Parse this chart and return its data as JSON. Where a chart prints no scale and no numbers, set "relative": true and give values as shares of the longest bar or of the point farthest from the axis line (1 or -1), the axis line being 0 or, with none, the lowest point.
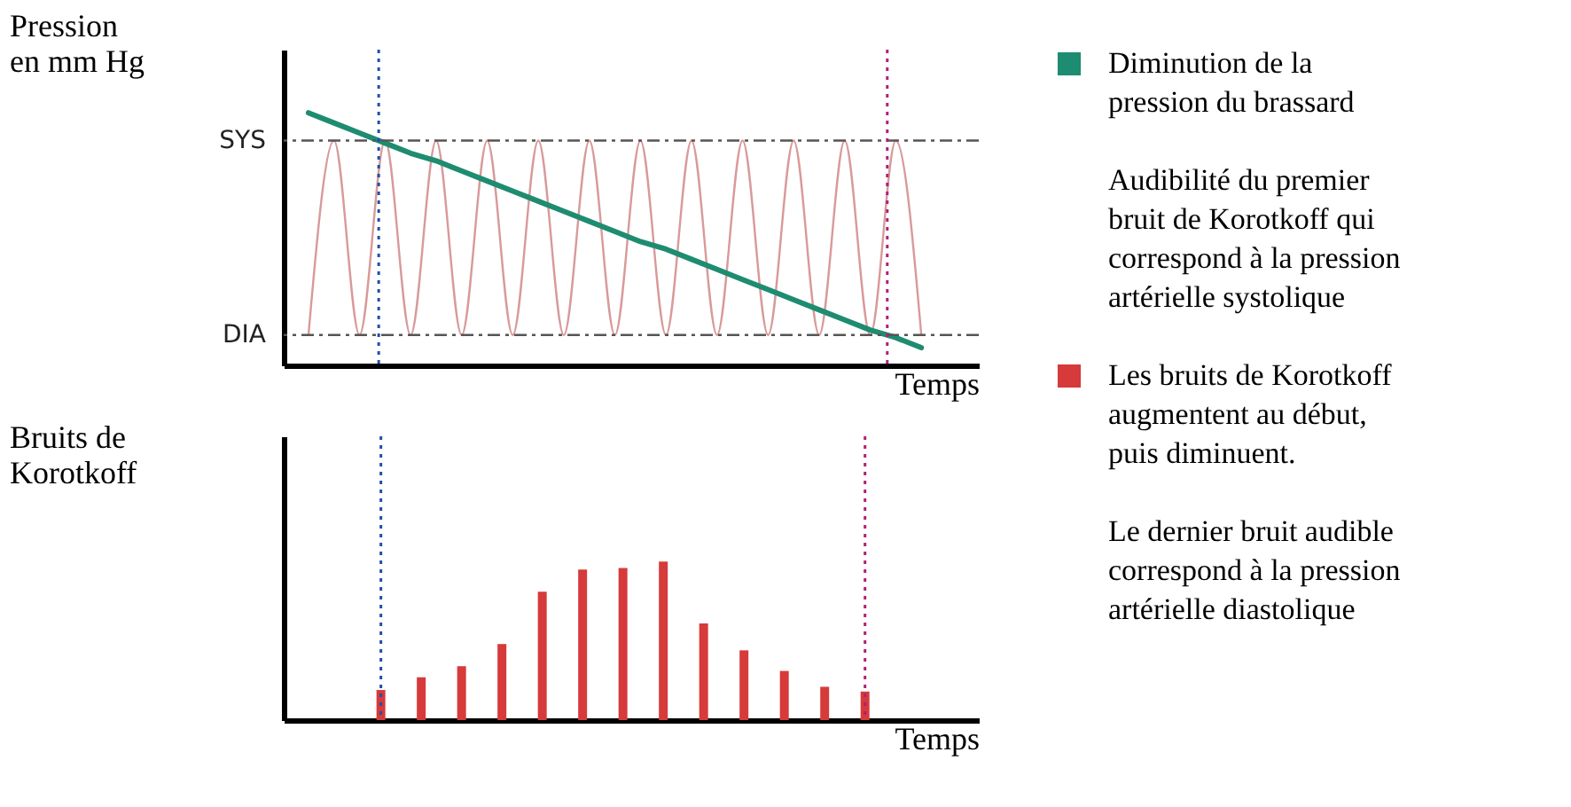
{
  "chart_data": [
    {
      "type": "line",
      "ylabel": "Pression en mm Hg",
      "xlabel": "Temps",
      "relative": true,
      "legend": "right",
      "categories": [
        null,
        null,
        null,
        null,
        null,
        null,
        null,
        null,
        null,
        null,
        null,
        null,
        null,
        null,
        null,
        null,
        null,
        null,
        null,
        null,
        null,
        null,
        null,
        null,
        null
      ],
      "series": [
        {
          "color": "#d89a9a",
          "values": [
            0.12,
            0.89,
            0.12,
            0.89,
            0.12,
            0.89,
            0.12,
            0.89,
            0.12,
            0.89,
            0.12,
            0.89,
            0.12,
            0.89,
            0.12,
            0.89,
            0.12,
            0.89,
            0.12,
            0.89,
            0.12,
            0.89,
            0.12,
            0.89,
            0.12
          ]
        },
        {
          "name": "Diminution de la pression du brassard",
          "color": "#1e8c70",
          "values": [
            1,
            0.96,
            0.92,
            0.88,
            0.84,
            0.81,
            0.77,
            0.73,
            0.69,
            0.65,
            0.61,
            0.57,
            0.53,
            0.49,
            0.46,
            0.42,
            0.38,
            0.34,
            0.3,
            0.26,
            0.22,
            0.18,
            0.14,
            0.11,
            0.07
          ]
        }
      ],
      "ref_lines": [
        {
          "axis": "y",
          "value": 0.89,
          "label": "SYS",
          "color": "#555555",
          "line_style": "dashed"
        },
        {
          "axis": "y",
          "value": 0.12,
          "label": "DIA",
          "color": "#555555",
          "line_style": "dashed"
        }
      ],
      "annotations": [
        "Audibilité du premier bruit de Korotkoff qui correspond à la pression artérielle systolique"
      ]
    },
    {
      "type": "bar",
      "ylabel": "Bruits de Korotkoff",
      "xlabel": "Temps",
      "relative": true,
      "legend": "right",
      "categories": [
        null,
        null,
        null,
        null,
        null,
        null,
        null,
        null,
        null,
        null,
        null,
        null,
        null
      ],
      "series": [
        {
          "name": "Les bruits de Korotkoff augmentent au début, puis diminuent.",
          "color": "#d63a3a",
          "values": [
            0.19,
            0.27,
            0.34,
            0.48,
            0.81,
            0.95,
            0.96,
            1,
            0.61,
            0.44,
            0.31,
            0.21,
            0.18
          ]
        }
      ],
      "annotations": [
        "Le dernier bruit audible correspond à la pression artérielle diastolique"
      ]
    }
  ]
}
